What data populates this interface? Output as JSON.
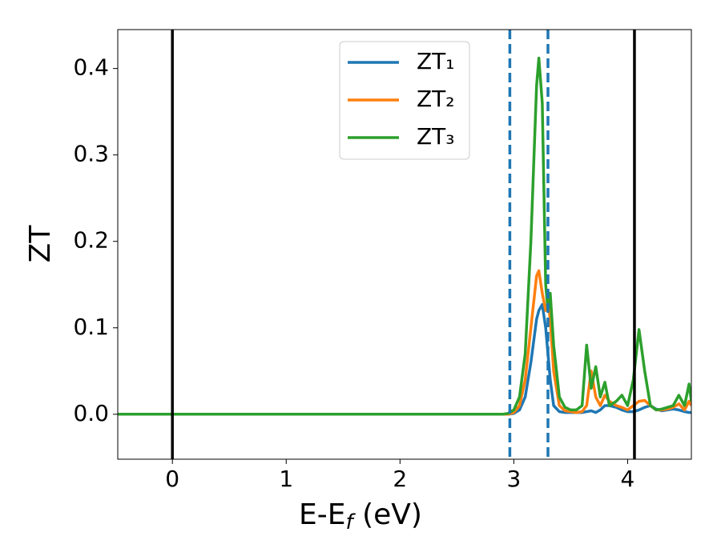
{
  "chart_data": {
    "type": "line",
    "xlabel": [
      "E-E",
      "f",
      " (eV)"
    ],
    "ylabel": "ZT",
    "xlim": [
      -0.48,
      4.56
    ],
    "ylim": [
      -0.052,
      0.445
    ],
    "xticks": [
      0,
      1,
      2,
      3,
      4
    ],
    "yticks": [
      {
        "value": 0,
        "label": "0.0"
      },
      0.1,
      0.2,
      0.3,
      0.4
    ],
    "legend": "upper center",
    "x": [
      -0.48,
      2.8,
      2.9,
      2.95,
      3.0,
      3.05,
      3.1,
      3.15,
      3.2,
      3.22,
      3.25,
      3.28,
      3.3,
      3.32,
      3.35,
      3.4,
      3.45,
      3.5,
      3.55,
      3.6,
      3.64,
      3.68,
      3.72,
      3.76,
      3.8,
      3.84,
      3.9,
      3.95,
      4.0,
      4.05,
      4.1,
      4.15,
      4.2,
      4.25,
      4.3,
      4.35,
      4.4,
      4.45,
      4.5,
      4.54,
      4.56
    ],
    "series": [
      {
        "name": "ZT₁",
        "color": "#1f77b4",
        "values": [
          0,
          0,
          0,
          0,
          0.001,
          0.005,
          0.02,
          0.06,
          0.11,
          0.12,
          0.127,
          0.1,
          0.07,
          0.04,
          0.01,
          0.003,
          0.002,
          0.002,
          0.002,
          0.002,
          0.003,
          0.004,
          0.002,
          0.005,
          0.01,
          0.01,
          0.008,
          0.005,
          0.003,
          0.003,
          0.005,
          0.008,
          0.01,
          0.006,
          0.004,
          0.005,
          0.006,
          0.005,
          0.003,
          0.002,
          0.002
        ]
      },
      {
        "name": "ZT₂",
        "color": "#ff7f0e",
        "values": [
          0,
          0,
          0,
          0,
          0.002,
          0.01,
          0.04,
          0.1,
          0.16,
          0.166,
          0.14,
          0.12,
          0.13,
          0.11,
          0.05,
          0.01,
          0.004,
          0.003,
          0.002,
          0.003,
          0.01,
          0.05,
          0.02,
          0.01,
          0.022,
          0.015,
          0.01,
          0.008,
          0.005,
          0.01,
          0.015,
          0.016,
          0.01,
          0.005,
          0.005,
          0.006,
          0.008,
          0.012,
          0.005,
          0.015,
          0.01
        ]
      },
      {
        "name": "ZT₃",
        "color": "#2ca02c",
        "values": [
          0,
          0,
          0,
          0.001,
          0.005,
          0.02,
          0.07,
          0.2,
          0.38,
          0.412,
          0.36,
          0.15,
          0.12,
          0.14,
          0.08,
          0.02,
          0.008,
          0.005,
          0.005,
          0.01,
          0.08,
          0.03,
          0.055,
          0.02,
          0.037,
          0.01,
          0.015,
          0.022,
          0.01,
          0.04,
          0.098,
          0.05,
          0.01,
          0.005,
          0.006,
          0.008,
          0.01,
          0.022,
          0.01,
          0.035,
          0.015
        ]
      }
    ],
    "vlines": [
      {
        "x": 0,
        "color": "#000000",
        "style": "solid"
      },
      {
        "x": 4.06,
        "color": "#000000",
        "style": "solid"
      },
      {
        "x": 2.965,
        "color": "#1f77b4",
        "style": "dashed"
      },
      {
        "x": 3.3,
        "color": "#1f77b4",
        "style": "dashed"
      }
    ]
  }
}
